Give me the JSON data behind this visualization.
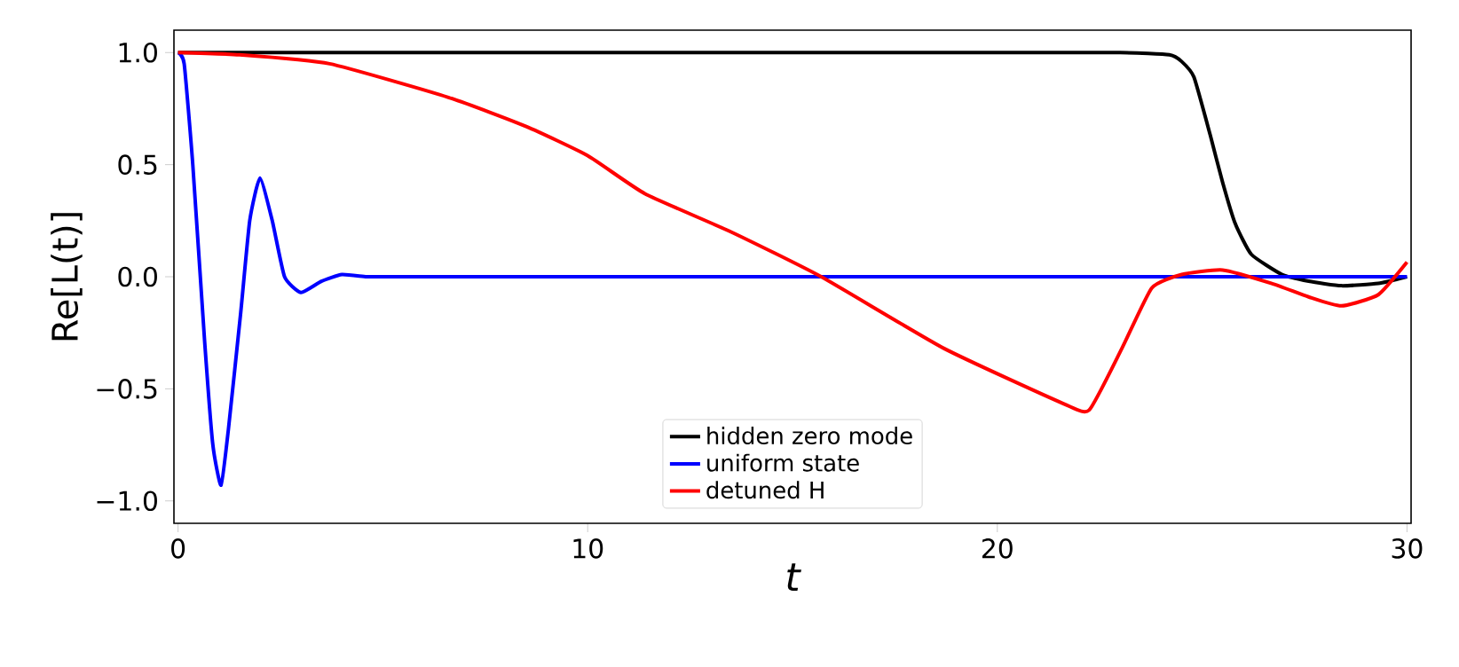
{
  "chart_data": {
    "type": "line",
    "xlabel": "t",
    "ylabel": "Re[L(t)]",
    "xlim": [
      -0.1,
      30.1
    ],
    "ylim": [
      -1.1,
      1.1
    ],
    "xticks": [
      0,
      10,
      20,
      30
    ],
    "yticks": [
      {
        "value": -1,
        "label": "−1.0"
      },
      {
        "value": -0.5,
        "label": "−0.5"
      },
      {
        "value": 0,
        "label": "0.0"
      },
      {
        "value": 0.5,
        "label": "0.5"
      },
      {
        "value": 1,
        "label": "1.0"
      }
    ],
    "legend": "bottom",
    "marker": "none",
    "line_style": "solid",
    "series": [
      {
        "name": "hidden zero mode",
        "color": "#000000",
        "x": [
          0,
          5,
          10,
          15,
          20,
          23,
          24.2,
          24.5,
          24.8,
          25.2,
          25.5,
          25.8,
          26.2,
          26.95,
          27.6,
          28.4,
          29.3,
          30
        ],
        "values": [
          1.0,
          1.0,
          1.0,
          1.0,
          1.0,
          1.0,
          0.99,
          0.96,
          0.89,
          0.63,
          0.42,
          0.24,
          0.1,
          0.01,
          -0.02,
          -0.04,
          -0.03,
          0.0
        ]
      },
      {
        "name": "uniform state",
        "color": "#0000ff",
        "x": [
          0,
          0.15,
          0.36,
          0.65,
          0.85,
          1.05,
          1.23,
          1.53,
          1.75,
          2.0,
          2.3,
          2.6,
          3.0,
          3.5,
          4.0,
          4.6,
          5,
          10,
          15,
          20,
          25,
          30
        ],
        "values": [
          1.0,
          0.95,
          0.5,
          -0.29,
          -0.75,
          -0.93,
          -0.68,
          -0.16,
          0.25,
          0.44,
          0.25,
          0.0,
          -0.07,
          -0.02,
          0.01,
          0.0,
          0.0,
          0.0,
          0.0,
          0.0,
          0.0,
          0.0
        ]
      },
      {
        "name": "detuned H",
        "color": "#ff0000",
        "x": [
          0,
          1.5,
          3.7,
          6.6,
          8.5,
          10,
          11.4,
          13.5,
          15.7,
          18.7,
          21.6,
          22.24,
          23.04,
          23.77,
          24.5,
          25.5,
          26.7,
          27.6,
          28.4,
          29.3,
          30
        ],
        "values": [
          1.0,
          0.99,
          0.95,
          0.8,
          0.67,
          0.54,
          0.37,
          0.2,
          0.0,
          -0.32,
          -0.565,
          -0.595,
          -0.32,
          -0.05,
          0.01,
          0.03,
          -0.03,
          -0.09,
          -0.13,
          -0.08,
          0.065
        ]
      }
    ]
  }
}
